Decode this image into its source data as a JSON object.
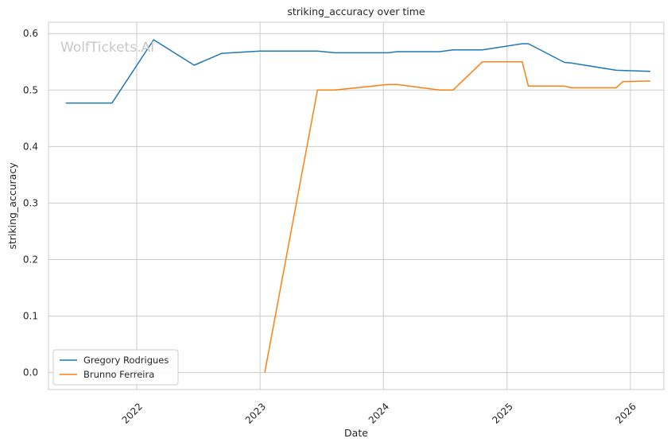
{
  "chart_data": {
    "type": "line",
    "title": "striking_accuracy over time",
    "xlabel": "Date",
    "ylabel": "striking_accuracy",
    "watermark": "WolfTickets.AI",
    "xlim": [
      "2021-04-15",
      "2026-04-10"
    ],
    "ylim": [
      -0.03,
      0.62
    ],
    "x_ticks": [
      {
        "date": "2022-01-01",
        "label": "2022"
      },
      {
        "date": "2023-01-01",
        "label": "2023"
      },
      {
        "date": "2024-01-01",
        "label": "2024"
      },
      {
        "date": "2025-01-01",
        "label": "2025"
      },
      {
        "date": "2026-01-01",
        "label": "2026"
      }
    ],
    "y_ticks": [
      0.0,
      0.1,
      0.2,
      0.3,
      0.4,
      0.5,
      0.6
    ],
    "y_tick_labels": [
      "0.0",
      "0.1",
      "0.2",
      "0.3",
      "0.4",
      "0.5",
      "0.6"
    ],
    "grid": true,
    "legend_position": "lower-left",
    "series": [
      {
        "name": "Gregory Rodrigues",
        "color": "#1f77b4",
        "points": [
          {
            "x": "2021-06-05",
            "y": 0.477
          },
          {
            "x": "2021-10-20",
            "y": 0.477
          },
          {
            "x": "2022-02-20",
            "y": 0.589
          },
          {
            "x": "2022-06-20",
            "y": 0.544
          },
          {
            "x": "2022-09-10",
            "y": 0.565
          },
          {
            "x": "2023-01-01",
            "y": 0.569
          },
          {
            "x": "2023-06-20",
            "y": 0.569
          },
          {
            "x": "2023-08-10",
            "y": 0.566
          },
          {
            "x": "2024-01-15",
            "y": 0.566
          },
          {
            "x": "2024-02-10",
            "y": 0.568
          },
          {
            "x": "2024-06-15",
            "y": 0.568
          },
          {
            "x": "2024-07-25",
            "y": 0.571
          },
          {
            "x": "2024-10-20",
            "y": 0.571
          },
          {
            "x": "2025-02-15",
            "y": 0.582
          },
          {
            "x": "2025-03-05",
            "y": 0.582
          },
          {
            "x": "2025-06-20",
            "y": 0.549
          },
          {
            "x": "2025-07-10",
            "y": 0.548
          },
          {
            "x": "2025-11-20",
            "y": 0.535
          },
          {
            "x": "2026-03-01",
            "y": 0.533
          }
        ]
      },
      {
        "name": "Brunno Ferreira",
        "color": "#ff7f0e",
        "points": [
          {
            "x": "2023-01-15",
            "y": 0.0
          },
          {
            "x": "2023-06-20",
            "y": 0.5
          },
          {
            "x": "2023-08-10",
            "y": 0.5
          },
          {
            "x": "2024-01-15",
            "y": 0.51
          },
          {
            "x": "2024-02-10",
            "y": 0.51
          },
          {
            "x": "2024-06-15",
            "y": 0.5
          },
          {
            "x": "2024-07-25",
            "y": 0.5
          },
          {
            "x": "2024-10-20",
            "y": 0.55
          },
          {
            "x": "2025-02-15",
            "y": 0.55
          },
          {
            "x": "2025-03-05",
            "y": 0.507
          },
          {
            "x": "2025-06-20",
            "y": 0.507
          },
          {
            "x": "2025-07-10",
            "y": 0.504
          },
          {
            "x": "2025-11-20",
            "y": 0.504
          },
          {
            "x": "2025-12-10",
            "y": 0.515
          },
          {
            "x": "2026-03-01",
            "y": 0.516
          }
        ]
      }
    ]
  }
}
